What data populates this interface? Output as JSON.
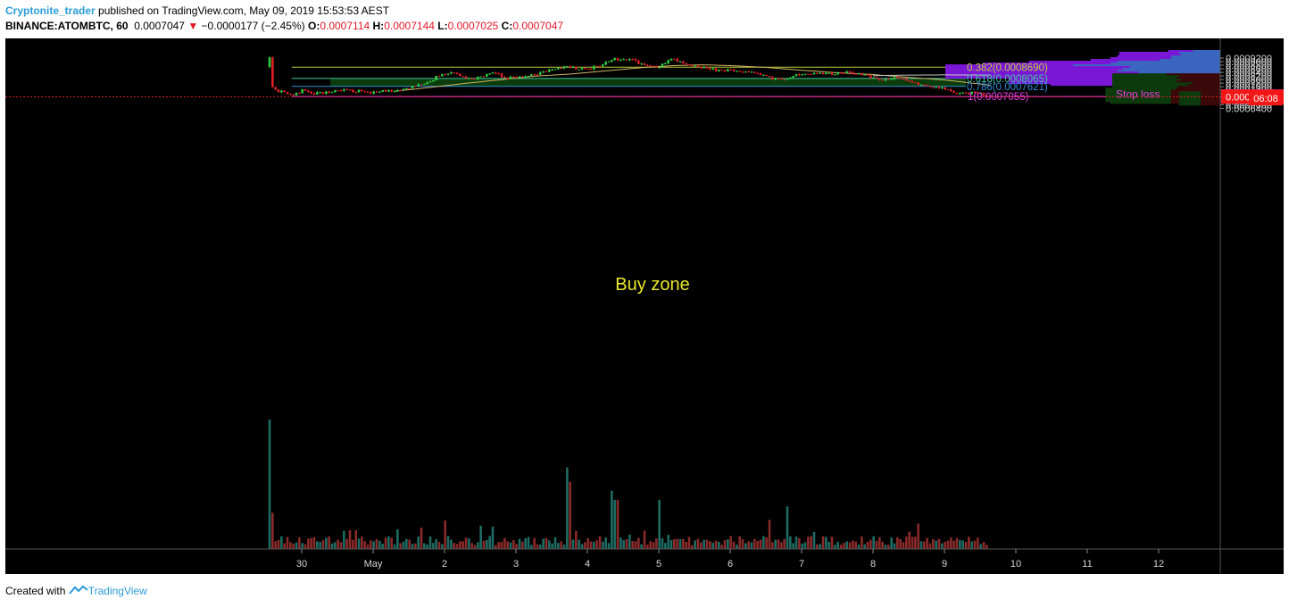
{
  "header": {
    "author": "Cryptonite_trader",
    "published_text": "published on TradingView.com, May 09, 2019 15:53:53 AEST",
    "symbol": "BINANCE:ATOMBTC, 60",
    "last": "0.0007047",
    "change": "−0.0000177 (−2.45%)",
    "o_label": "O:",
    "o_value": "0.0007114",
    "h_label": "H:",
    "h_value": "0.0007144",
    "l_label": "L:",
    "l_value": "0.0007025",
    "c_label": "C:",
    "c_value": "0.0007047"
  },
  "footer": {
    "created_with": "Created with",
    "brand": "TradingView"
  },
  "colors": {
    "background": "#000000",
    "up": "#2ecc40",
    "down": "#e01f26",
    "fib_382": "#bcd13a",
    "fib_618": "#3ec9a2",
    "fib_786": "#2f8fdc",
    "fib_1": "#e93ce6",
    "buy_zone": "#0b3c0b",
    "ma_50": "#d4b56a",
    "ma_200": "#c8c8c8",
    "vp_purple": "#7a16d6",
    "vp_blue": "#3a66c0",
    "vp_green": "#0d3a0d",
    "vp_red": "#3a0808",
    "annotation_text": "#e8e82a",
    "stop_loss_text": "#e93ce6",
    "price_tag_red": "#f31616",
    "price_tag_magenta": "#f12cf0"
  },
  "chart_data": {
    "type": "candlestick",
    "symbol": "BINANCE:ATOMBTC",
    "interval": "60",
    "x_ticks": [
      "30",
      "May",
      "2",
      "3",
      "4",
      "5",
      "6",
      "7",
      "8",
      "9",
      "10",
      "11",
      "12"
    ],
    "y_ticks": [
      "0.0009200",
      "0.0009000",
      "0.0008800",
      "0.0008600",
      "0.0008400",
      "0.0008200",
      "0.0008000",
      "0.0007800",
      "0.0007600",
      "0.0007400",
      "0.0007200",
      "0.0007000",
      "0.0006800",
      "0.0006600",
      "0.0006400"
    ],
    "ylim": [
      0.000632,
      0.000932
    ],
    "x_range_days": [
      -1.4,
      13.3
    ],
    "price_path": [
      [
        -0.45,
        0.00092
      ],
      [
        -0.42,
        0.00076
      ],
      [
        -0.35,
        0.000735
      ],
      [
        -0.2,
        0.000725
      ],
      [
        -0.1,
        0.000712
      ],
      [
        0.0,
        0.00074
      ],
      [
        0.2,
        0.000722
      ],
      [
        0.4,
        0.00073
      ],
      [
        0.6,
        0.000742
      ],
      [
        0.8,
        0.000735
      ],
      [
        1.0,
        0.000728
      ],
      [
        1.2,
        0.000738
      ],
      [
        1.35,
        0.000735
      ],
      [
        1.5,
        0.000752
      ],
      [
        1.6,
        0.00077
      ],
      [
        1.8,
        0.000785
      ],
      [
        1.9,
        0.00082
      ],
      [
        2.1,
        0.000835
      ],
      [
        2.2,
        0.000822
      ],
      [
        2.4,
        0.0008
      ],
      [
        2.5,
        0.000812
      ],
      [
        2.7,
        0.000838
      ],
      [
        2.85,
        0.00081
      ],
      [
        3.0,
        0.000815
      ],
      [
        3.2,
        0.000822
      ],
      [
        3.4,
        0.00084
      ],
      [
        3.6,
        0.00087
      ],
      [
        3.8,
        0.000865
      ],
      [
        4.0,
        0.000858
      ],
      [
        4.15,
        0.000875
      ],
      [
        4.35,
        0.000912
      ],
      [
        4.5,
        0.000915
      ],
      [
        4.65,
        0.000905
      ],
      [
        4.8,
        0.00088
      ],
      [
        5.0,
        0.000865
      ],
      [
        5.1,
        0.0009
      ],
      [
        5.2,
        0.00092
      ],
      [
        5.35,
        0.000885
      ],
      [
        5.5,
        0.00087
      ],
      [
        5.7,
        0.00086
      ],
      [
        5.85,
        0.000848
      ],
      [
        6.0,
        0.000852
      ],
      [
        6.2,
        0.000845
      ],
      [
        6.35,
        0.00084
      ],
      [
        6.5,
        0.000822
      ],
      [
        6.6,
        0.000803
      ],
      [
        6.75,
        0.0008
      ],
      [
        6.9,
        0.000825
      ],
      [
        7.1,
        0.000838
      ],
      [
        7.3,
        0.00083
      ],
      [
        7.5,
        0.000832
      ],
      [
        7.65,
        0.00084
      ],
      [
        7.85,
        0.000832
      ],
      [
        8.0,
        0.00081
      ],
      [
        8.15,
        0.0008
      ],
      [
        8.3,
        0.00081
      ],
      [
        8.45,
        0.000795
      ],
      [
        8.55,
        0.000785
      ],
      [
        8.7,
        0.00077
      ],
      [
        8.85,
        0.00076
      ],
      [
        9.0,
        0.000755
      ],
      [
        9.1,
        0.000725
      ],
      [
        9.25,
        0.00072
      ],
      [
        9.4,
        0.000728
      ],
      [
        9.55,
        0.000718
      ],
      [
        9.6,
        0.00071
      ],
      [
        9.62,
        0.000705
      ]
    ],
    "price_noise": 7.5e-06,
    "volume_spikes": [
      [
        -0.45,
        1.0
      ],
      [
        -0.4,
        0.28
      ],
      [
        3.7,
        0.63
      ],
      [
        3.75,
        0.52
      ],
      [
        4.35,
        0.45
      ],
      [
        4.4,
        0.38
      ],
      [
        5.0,
        0.38
      ],
      [
        6.8,
        0.3
      ],
      [
        2.0,
        0.22
      ],
      [
        2.5,
        0.18
      ]
    ],
    "series": [
      {
        "type": "line",
        "path": [
          [
            1.3,
            0.000735
          ],
          [
            1.7,
            0.000752
          ],
          [
            2.2,
            0.000775
          ],
          [
            2.8,
            0.0008
          ],
          [
            3.3,
            0.00082
          ],
          [
            3.8,
            0.000832
          ],
          [
            4.3,
            0.00085
          ],
          [
            4.8,
            0.000868
          ],
          [
            5.2,
            0.000878
          ],
          [
            5.6,
            0.000882
          ],
          [
            6.0,
            0.000878
          ],
          [
            6.5,
            0.000868
          ],
          [
            7.0,
            0.000852
          ],
          [
            7.5,
            0.000838
          ],
          [
            8.0,
            0.000828
          ],
          [
            8.5,
            0.000812
          ],
          [
            9.0,
            0.000798
          ],
          [
            9.4,
            0.00078
          ],
          [
            9.7,
            0.000766
          ]
        ]
      },
      {
        "type": "line",
        "path": [
          [
            8.0,
            0.000822
          ],
          [
            8.5,
            0.000825
          ],
          [
            9.0,
            0.000826
          ],
          [
            9.7,
            0.000825
          ]
        ]
      }
    ],
    "fib_levels": [
      {
        "label": "0.382(0.0008690)",
        "price": 0.000869,
        "x_start": -0.14,
        "x_end": 9.3
      },
      {
        "label": "0.618(0.0008065)",
        "price": 0.0008065,
        "x_start": -0.14,
        "x_end": 9.3
      },
      {
        "label": "0.786(0.0007621)",
        "price": 0.0007621,
        "x_start": -0.14,
        "x_end": 9.3
      },
      {
        "label": "1(0.0007055)",
        "price": 0.0007055,
        "x_start": -0.14,
        "x_end": 13.3
      }
    ],
    "zones": [
      {
        "label": "Buy zone",
        "x_start": 0.4,
        "x_end": 9.3,
        "price_top": 0.0008055,
        "price_bottom": 0.0007625
      }
    ],
    "annotations": [
      {
        "label": "Stop loss",
        "x": 11.7,
        "price": 0.0007193
      }
    ],
    "current_price": 0.0007047,
    "price_tags": [
      {
        "label": "0.0007055",
        "price": 0.0007055,
        "color": "magenta"
      },
      {
        "label": "0.0007047",
        "price": 0.0007047,
        "color": "red"
      },
      {
        "label": "06:08",
        "price": 0.000696,
        "color": "red"
      }
    ],
    "volume_profile": {
      "rows": [
        {
          "price": 0.000925,
          "up": 0.25,
          "down": 0.28
        },
        {
          "price": 0.000915,
          "up": 0.6,
          "down": 0.43
        },
        {
          "price": 0.000905,
          "up": 0.55,
          "down": 0.4
        },
        {
          "price": 0.000895,
          "up": 0.55,
          "down": 0.5
        },
        {
          "price": 0.000885,
          "up": 0.62,
          "down": 0.5
        },
        {
          "price": 0.000875,
          "up": 0.7,
          "down": 0.62
        },
        {
          "price": 0.000865,
          "up": 0.9,
          "down": 1.05
        },
        {
          "price": 0.000855,
          "up": 1.3,
          "down": 1.12
        },
        {
          "price": 0.000845,
          "up": 1.3,
          "down": 1.5
        },
        {
          "price": 0.000835,
          "up": 0.93,
          "down": 0.92
        },
        {
          "price": 0.000825,
          "up": 1.15,
          "down": 1.0
        },
        {
          "price": 0.000815,
          "up": 1.1,
          "down": 1.05
        },
        {
          "price": 0.000805,
          "up": 0.9,
          "down": 0.83
        },
        {
          "price": 0.000795,
          "up": 0.55,
          "down": 0.55
        },
        {
          "price": 0.000785,
          "up": 0.42,
          "down": 0.42
        },
        {
          "price": 0.000775,
          "up": 0.35,
          "down": 0.45
        },
        {
          "price": 0.000765,
          "up": 0.42,
          "down": 0.4
        },
        {
          "price": 0.000755,
          "up": 0.42,
          "down": 0.45
        },
        {
          "price": 0.000745,
          "up": 0.62,
          "down": 0.28
        },
        {
          "price": 0.000735,
          "up": 0.27,
          "down": 0.33
        },
        {
          "price": 0.000725,
          "up": 0.53,
          "down": 0.43
        },
        {
          "price": 0.000715,
          "up": 0.72,
          "down": 0.45
        },
        {
          "price": 0.000705,
          "up": 0.62,
          "down": 0.5
        },
        {
          "price": 0.000695,
          "up": 0.22,
          "down": 0.2
        }
      ]
    }
  }
}
